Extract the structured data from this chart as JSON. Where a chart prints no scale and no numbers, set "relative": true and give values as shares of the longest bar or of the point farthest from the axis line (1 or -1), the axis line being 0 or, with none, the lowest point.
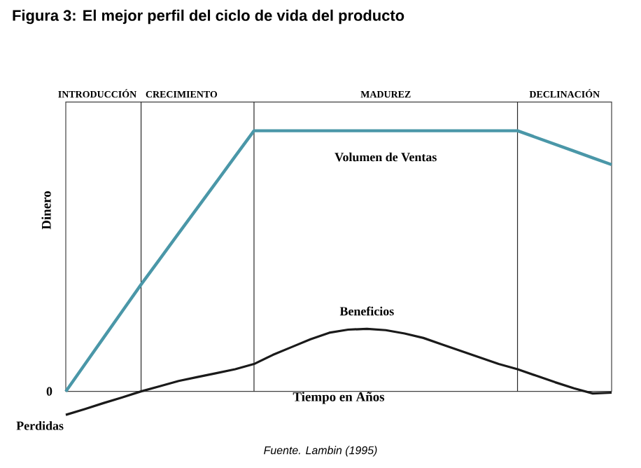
{
  "chart_data": {
    "type": "line",
    "title": "Figura 3: El mejor perfil del ciclo de vida del producto",
    "xlabel": "Tiempo en Años",
    "ylabel": "Dinero",
    "relative": true,
    "marker": "none",
    "categories": [
      null,
      null,
      null,
      null,
      null,
      null,
      null,
      null,
      null,
      null,
      null,
      null,
      null,
      null,
      null,
      null,
      null,
      null,
      null,
      null,
      null,
      null,
      null,
      null,
      null,
      null,
      null,
      null,
      null,
      null
    ],
    "series": [
      {
        "name": "Volumen de Ventas",
        "color": "#4a97a8",
        "values": [
          0,
          0.1025,
          0.205,
          0.3075,
          0.41,
          0.508,
          0.607,
          0.705,
          0.803,
          0.902,
          1.0,
          1.0,
          1.0,
          1.0,
          1.0,
          1.0,
          1.0,
          1.0,
          1.0,
          1.0,
          1.0,
          1.0,
          1.0,
          1.0,
          1.0,
          0.974,
          0.948,
          0.922,
          0.896,
          0.87
        ]
      },
      {
        "name": "Beneficios",
        "color": "#1a1a1a",
        "values": [
          -0.09,
          -0.068,
          -0.045,
          -0.023,
          0,
          0.02,
          0.04,
          0.055,
          0.07,
          0.085,
          0.105,
          0.14,
          0.17,
          0.2,
          0.225,
          0.237,
          0.24,
          0.235,
          0.222,
          0.205,
          0.18,
          0.155,
          0.13,
          0.105,
          0.085,
          0.06,
          0.035,
          0.012,
          -0.008,
          -0.005
        ]
      }
    ],
    "grid": "x",
    "annotations": [
      "INTRODUCCIÓN",
      "CRECIMIENTO",
      "MADUREZ",
      "DECLINACIÓN",
      "0",
      "Perdidas",
      "Fuente. Lambin (1995)"
    ]
  }
}
